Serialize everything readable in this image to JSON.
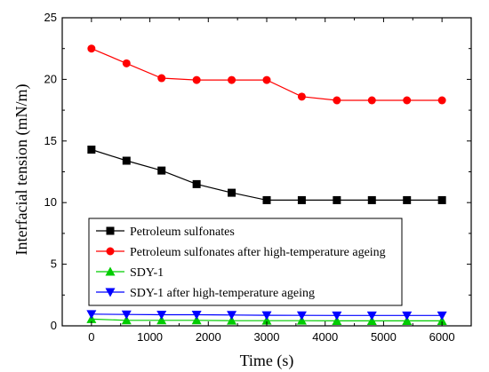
{
  "chart_data": {
    "type": "line",
    "title": "",
    "xlabel": "Time (s)",
    "ylabel": "Interfacial tension (mN/m)",
    "xlim": [
      -500,
      6500
    ],
    "ylim": [
      0,
      25
    ],
    "x_ticks": [
      0,
      1000,
      2000,
      3000,
      4000,
      5000,
      6000
    ],
    "y_ticks": [
      0,
      5,
      10,
      15,
      20,
      25
    ],
    "x": [
      0,
      600,
      1200,
      1800,
      2400,
      3000,
      3600,
      4200,
      4800,
      5400,
      6000
    ],
    "grid": false,
    "legend_position": "bottom-left",
    "series": [
      {
        "name": "Petroleum sulfonates",
        "color": "#000000",
        "marker": "square",
        "values": [
          14.3,
          13.4,
          12.6,
          11.5,
          10.8,
          10.2,
          10.2,
          10.2,
          10.2,
          10.2,
          10.2
        ]
      },
      {
        "name": "Petroleum sulfonates after high-temperature ageing",
        "color": "#ff0000",
        "marker": "circle",
        "values": [
          22.5,
          21.3,
          20.1,
          19.95,
          19.95,
          19.95,
          18.6,
          18.3,
          18.3,
          18.3,
          18.3
        ]
      },
      {
        "name": "SDY-1",
        "color": "#00cc00",
        "marker": "triangle-up",
        "values": [
          0.55,
          0.45,
          0.45,
          0.45,
          0.42,
          0.42,
          0.42,
          0.4,
          0.4,
          0.4,
          0.4
        ]
      },
      {
        "name": "SDY-1 after high-temperature ageing",
        "color": "#0000ff",
        "marker": "triangle-down",
        "values": [
          0.95,
          0.92,
          0.9,
          0.9,
          0.88,
          0.86,
          0.85,
          0.84,
          0.84,
          0.84,
          0.84
        ]
      }
    ]
  }
}
